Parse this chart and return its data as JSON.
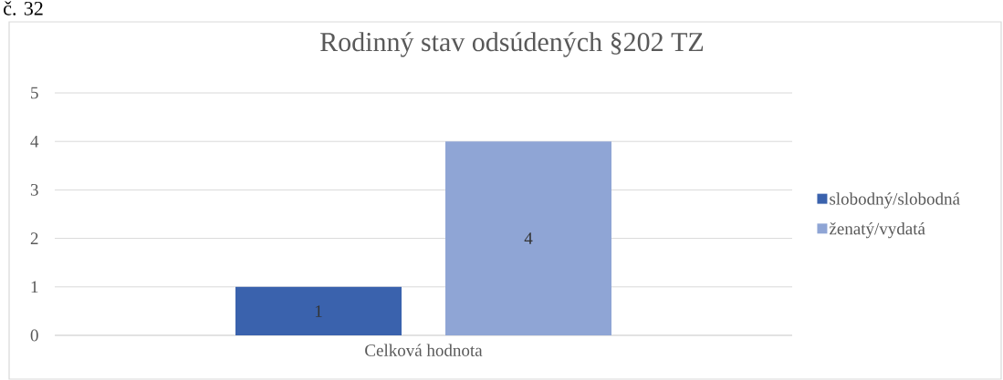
{
  "chart_data": {
    "type": "bar",
    "title": "Rodinný stav odsúdených §202 TZ",
    "annotations": [
      "č. 32"
    ],
    "categories": [
      "Celková hodnota"
    ],
    "series": [
      {
        "name": "slobodný/slobodná",
        "color": "#3a62ad",
        "values": [
          1
        ],
        "value_labels": [
          "1"
        ]
      },
      {
        "name": "ženatý/vydatá",
        "color": "#8fa5d5",
        "values": [
          4
        ],
        "value_labels": [
          "4"
        ]
      }
    ],
    "ylim": [
      0,
      5
    ],
    "yticks": [
      0,
      1,
      2,
      3,
      4,
      5
    ],
    "grid": "y",
    "legend": "right"
  }
}
